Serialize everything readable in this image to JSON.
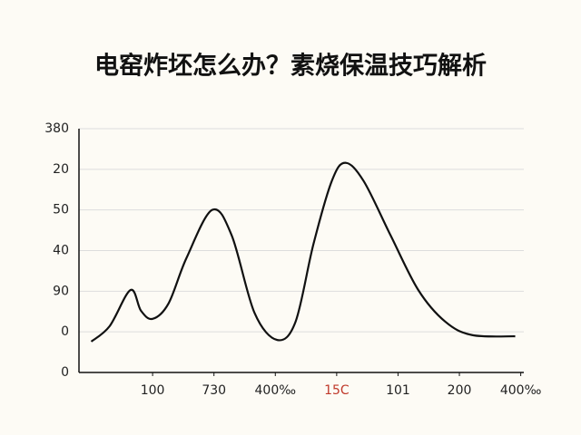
{
  "chart_data": {
    "type": "line",
    "title": "电窑炸坯怎么办？素烧保温技巧解析",
    "x": [
      0,
      0.3,
      0.64,
      0.81,
      1.0,
      1.26,
      1.55,
      1.97,
      2.29,
      2.66,
      3.03,
      3.33,
      3.62,
      3.92,
      4.14,
      4.44,
      4.88,
      5.33,
      5.77,
      6.21,
      6.91
    ],
    "values": [
      0.76,
      1.14,
      2.03,
      1.52,
      1.32,
      1.7,
      2.81,
      4.0,
      3.37,
      1.47,
      0.8,
      1.25,
      3.15,
      4.71,
      5.16,
      4.71,
      3.37,
      2.03,
      1.25,
      0.92,
      0.89
    ],
    "color": "#111111",
    "xlim": [
      -0.2,
      7.05
    ],
    "xticks": [
      {
        "value": 1,
        "label": "100"
      },
      {
        "value": 2,
        "label": "730"
      },
      {
        "value": 3,
        "label": "400‰"
      },
      {
        "value": 4,
        "label": "15C"
      },
      {
        "value": 5,
        "label": "101"
      },
      {
        "value": 6,
        "label": "200"
      },
      {
        "value": 7,
        "label": "400‰"
      }
    ],
    "xtick_colors": [
      "#222222",
      "#222222",
      "#222222",
      "#c0392b",
      "#222222",
      "#222222",
      "#222222"
    ],
    "ylim": [
      0,
      6
    ],
    "yticks": [
      {
        "value": 0,
        "label": "0"
      },
      {
        "value": 1,
        "label": "0"
      },
      {
        "value": 2,
        "label": "90"
      },
      {
        "value": 3,
        "label": "40"
      },
      {
        "value": 4,
        "label": "50"
      },
      {
        "value": 5,
        "label": "20"
      },
      {
        "value": 6,
        "label": "380"
      }
    ],
    "grid": true
  }
}
